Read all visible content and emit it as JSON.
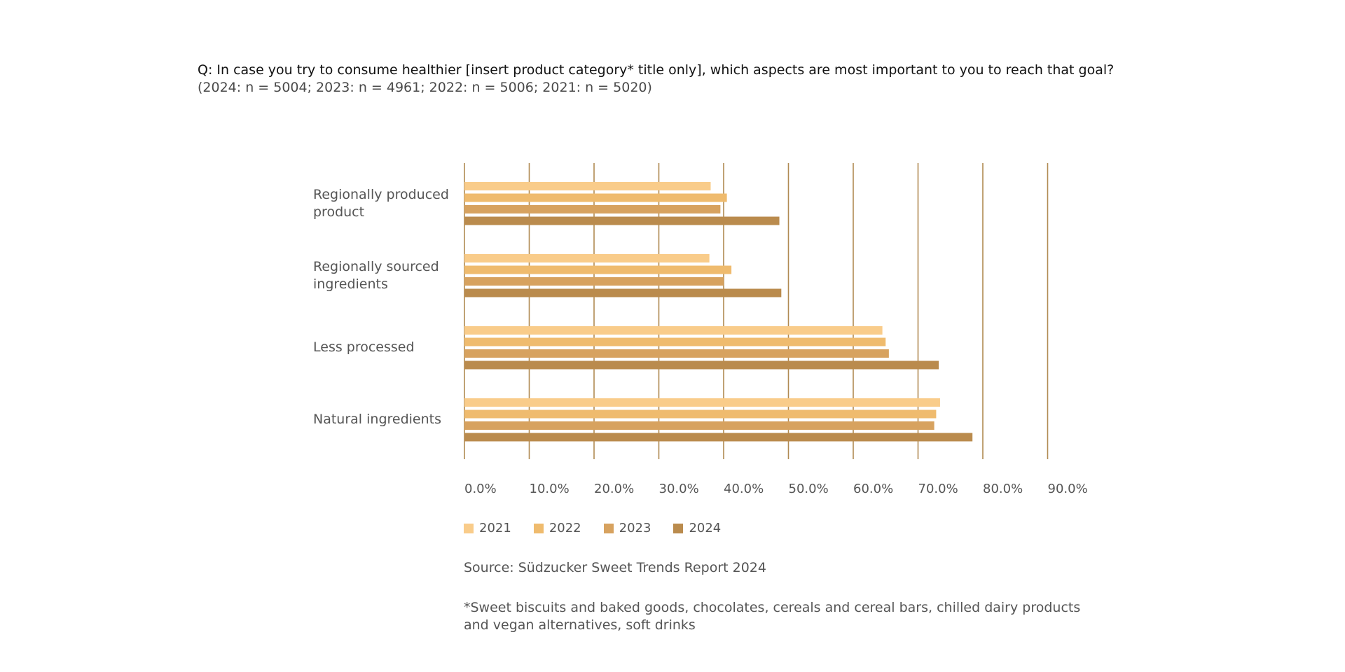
{
  "header": {
    "question": "Q: In case you try to consume healthier [insert product category* title only], which aspects are most important to you to reach that goal?",
    "sample": "(2024: n = 5004; 2023: n = 4961; 2022: n = 5006; 2021: n = 5020)"
  },
  "chart_data": {
    "type": "bar",
    "orientation": "horizontal",
    "categories": [
      "Regionally produced product",
      "Regionally sourced ingredients",
      "Less processed",
      "Natural ingredients"
    ],
    "series": [
      {
        "name": "2021",
        "color": "#f9cc8a",
        "values": [
          38.0,
          37.8,
          64.5,
          73.4
        ]
      },
      {
        "name": "2022",
        "color": "#efbb6e",
        "values": [
          40.5,
          41.2,
          65.0,
          72.8
        ]
      },
      {
        "name": "2023",
        "color": "#d7a25f",
        "values": [
          39.5,
          40.0,
          65.5,
          72.5
        ]
      },
      {
        "name": "2024",
        "color": "#ba8b4d",
        "values": [
          48.6,
          48.9,
          73.2,
          78.4
        ]
      }
    ],
    "xlim": [
      0,
      90
    ],
    "ticks": [
      "0.0%",
      "10.0%",
      "20.0%",
      "30.0%",
      "40.0%",
      "50.0%",
      "60.0%",
      "70.0%",
      "80.0%",
      "90.0%"
    ],
    "gridline_color": "#b08a52",
    "legend_position": "bottom"
  },
  "footer": {
    "source": "Source: Südzucker Sweet Trends Report 2024",
    "footnote": "*Sweet biscuits and baked goods, chocolates, cereals and cereal bars, chilled dairy products and vegan alternatives, soft drinks"
  }
}
